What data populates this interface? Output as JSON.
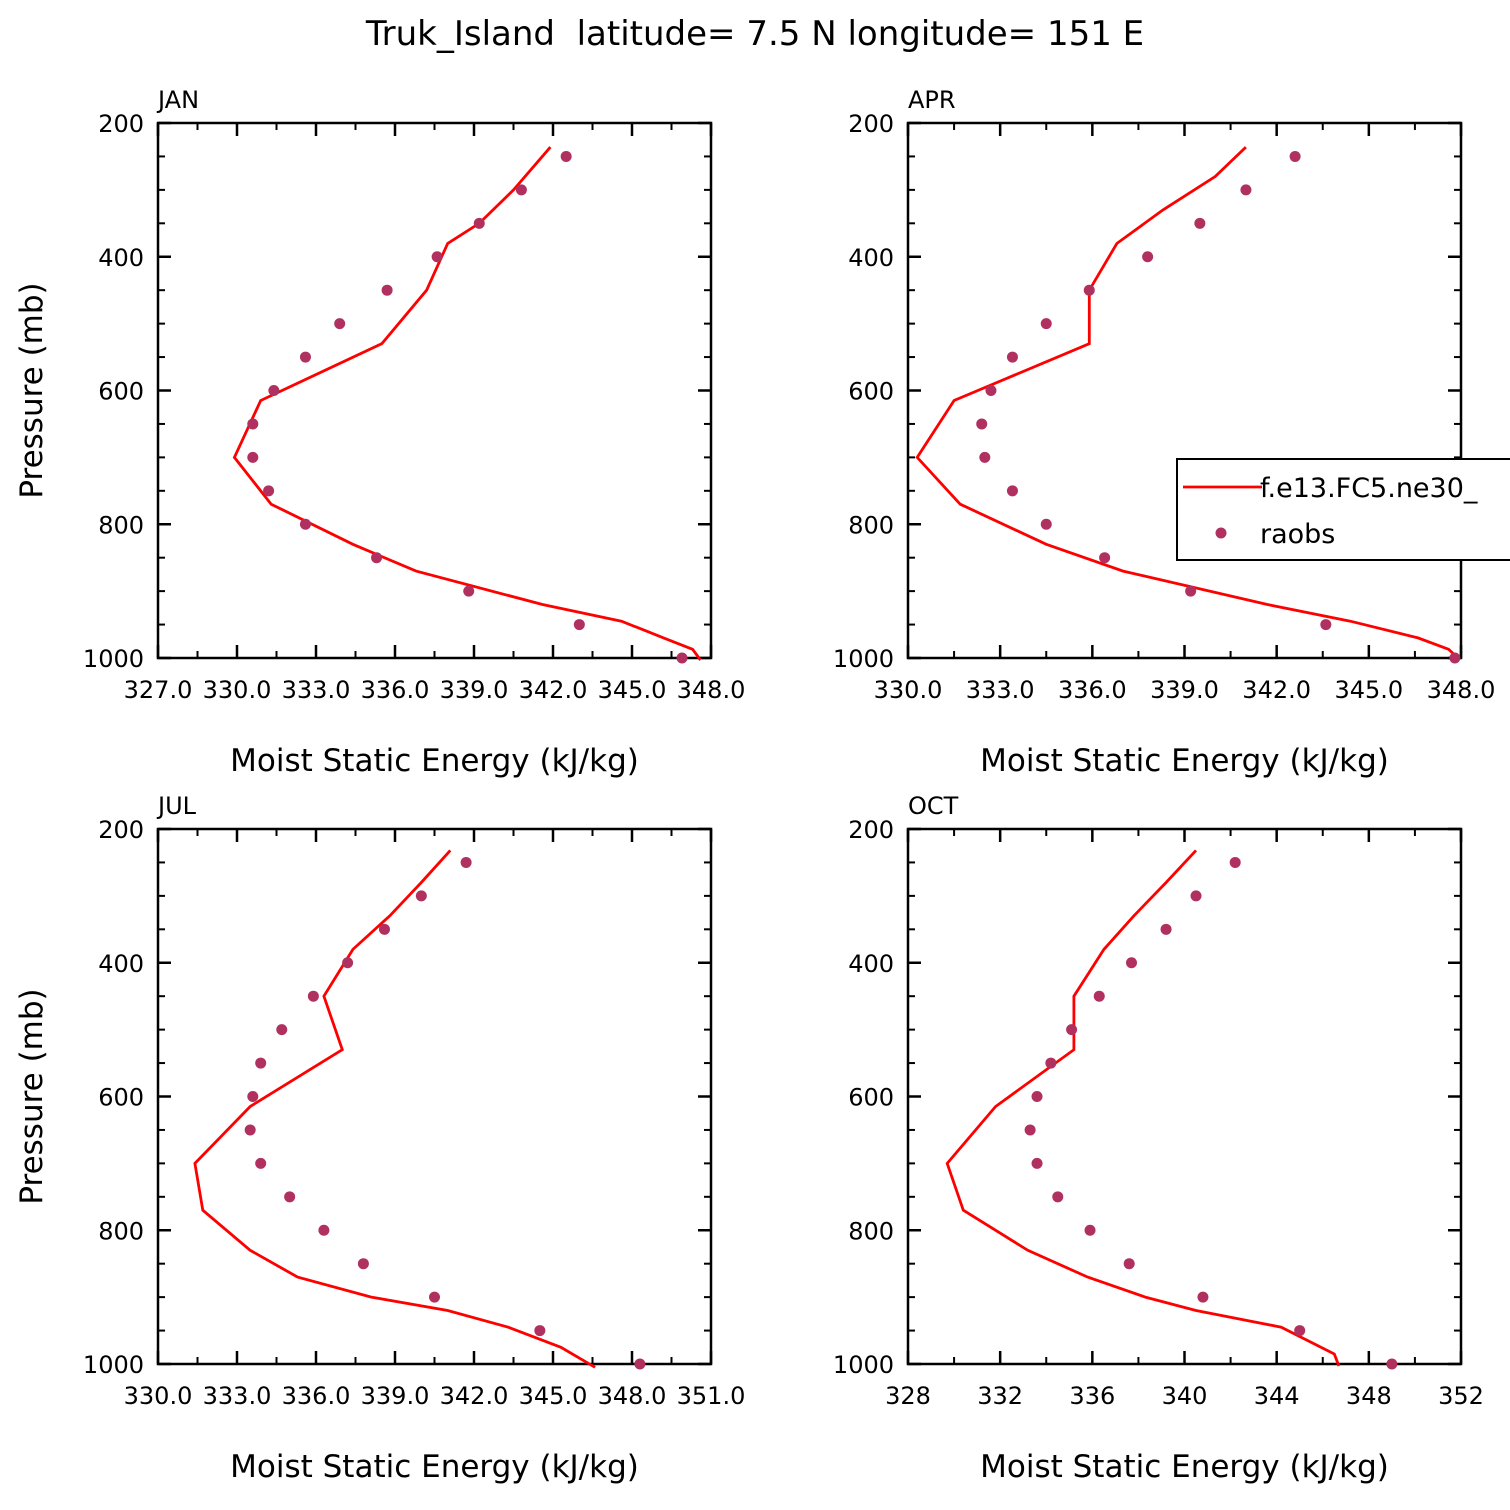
{
  "title": "Truk_Island  latitude= 7.5 N longitude= 151 E",
  "legend": {
    "model_label": "f.e13.FC5.ne30_",
    "obs_label": "raobs"
  },
  "colors": {
    "model": "#ff0000",
    "obs": "#b03060",
    "axis": "#000000"
  },
  "chart_data": [
    {
      "type": "line",
      "panel": "JAN",
      "title": "JAN",
      "xlabel": "Moist Static Energy (kJ/kg)",
      "ylabel": "Pressure (mb)",
      "xlim": [
        327,
        348
      ],
      "ylim": [
        1000,
        200
      ],
      "y_inverted": true,
      "x_ticks": [
        "327.0",
        "330.0",
        "333.0",
        "336.0",
        "339.0",
        "342.0",
        "345.0",
        "348.0"
      ],
      "y_ticks": [
        "200",
        "400",
        "600",
        "800",
        "1000"
      ],
      "series": [
        {
          "kind": "line",
          "pressure": [
            236,
            300,
            350,
            380,
            450,
            530,
            615,
            700,
            770,
            830,
            870,
            920,
            945,
            970,
            987,
            1003
          ],
          "mse": [
            341.9,
            340.5,
            339.2,
            338.0,
            337.2,
            335.5,
            330.9,
            329.9,
            331.3,
            334.4,
            336.8,
            341.6,
            344.6,
            346.2,
            347.3,
            347.6
          ]
        },
        {
          "kind": "scatter",
          "pressure": [
            250,
            300,
            350,
            400,
            450,
            500,
            550,
            600,
            650,
            700,
            750,
            800,
            850,
            900,
            950,
            1000
          ],
          "mse": [
            342.5,
            340.8,
            339.2,
            337.6,
            335.7,
            333.9,
            332.6,
            331.4,
            330.6,
            330.6,
            331.2,
            332.6,
            335.3,
            338.8,
            343.0,
            346.9
          ]
        }
      ]
    },
    {
      "type": "line",
      "panel": "APR",
      "title": "APR",
      "xlabel": "Moist Static Energy (kJ/kg)",
      "ylabel": "",
      "xlim": [
        330,
        348
      ],
      "ylim": [
        1000,
        200
      ],
      "y_inverted": true,
      "x_ticks": [
        "330.0",
        "333.0",
        "336.0",
        "339.0",
        "342.0",
        "345.0",
        "348.0"
      ],
      "y_ticks": [
        "200",
        "400",
        "600",
        "800",
        "1000"
      ],
      "show_legend": true,
      "legend_position": "right",
      "series": [
        {
          "kind": "line",
          "pressure": [
            236,
            280,
            330,
            380,
            450,
            530,
            615,
            700,
            770,
            830,
            870,
            920,
            945,
            970,
            987,
            1000
          ],
          "mse": [
            341.0,
            340.0,
            338.3,
            336.8,
            335.9,
            335.9,
            331.5,
            330.3,
            331.7,
            334.5,
            337.0,
            341.7,
            344.4,
            346.6,
            347.6,
            347.9
          ]
        },
        {
          "kind": "scatter",
          "pressure": [
            250,
            300,
            350,
            400,
            450,
            500,
            550,
            600,
            650,
            700,
            750,
            800,
            850,
            900,
            950,
            1000
          ],
          "mse": [
            342.6,
            341.0,
            339.5,
            337.8,
            335.9,
            334.5,
            333.4,
            332.7,
            332.4,
            332.5,
            333.4,
            334.5,
            336.4,
            339.2,
            343.6,
            347.8
          ]
        }
      ]
    },
    {
      "type": "line",
      "panel": "JUL",
      "title": "JUL",
      "xlabel": "Moist Static Energy (kJ/kg)",
      "ylabel": "Pressure (mb)",
      "xlim": [
        330,
        351
      ],
      "ylim": [
        1000,
        200
      ],
      "y_inverted": true,
      "x_ticks": [
        "330.0",
        "333.0",
        "336.0",
        "339.0",
        "342.0",
        "345.0",
        "348.0",
        "351.0"
      ],
      "y_ticks": [
        "200",
        "400",
        "600",
        "800",
        "1000"
      ],
      "series": [
        {
          "kind": "line",
          "pressure": [
            232,
            280,
            330,
            380,
            450,
            530,
            615,
            700,
            770,
            830,
            870,
            900,
            920,
            945,
            975,
            1005
          ],
          "mse": [
            341.1,
            340.0,
            338.8,
            337.4,
            336.3,
            337.0,
            333.5,
            331.4,
            331.7,
            333.5,
            335.3,
            338.1,
            341.0,
            343.3,
            345.3,
            346.6
          ]
        },
        {
          "kind": "scatter",
          "pressure": [
            250,
            300,
            350,
            400,
            450,
            500,
            550,
            600,
            650,
            700,
            750,
            800,
            850,
            900,
            950,
            1000
          ],
          "mse": [
            341.7,
            340.0,
            338.6,
            337.2,
            335.9,
            334.7,
            333.9,
            333.6,
            333.5,
            333.9,
            335.0,
            336.3,
            337.8,
            340.5,
            344.5,
            348.3
          ]
        }
      ]
    },
    {
      "type": "line",
      "panel": "OCT",
      "title": "OCT",
      "xlabel": "Moist Static Energy (kJ/kg)",
      "ylabel": "",
      "xlim": [
        328,
        352
      ],
      "ylim": [
        1000,
        200
      ],
      "y_inverted": true,
      "x_ticks": [
        "328",
        "332",
        "336",
        "340",
        "344",
        "348",
        "352"
      ],
      "y_ticks": [
        "200",
        "400",
        "600",
        "800",
        "1000"
      ],
      "series": [
        {
          "kind": "line",
          "pressure": [
            232,
            280,
            330,
            380,
            450,
            530,
            615,
            700,
            770,
            830,
            870,
            900,
            920,
            945,
            985,
            1003
          ],
          "mse": [
            340.5,
            339.2,
            337.8,
            336.5,
            335.2,
            335.2,
            331.8,
            329.7,
            330.4,
            333.2,
            335.8,
            338.3,
            340.5,
            344.2,
            346.5,
            346.7
          ]
        },
        {
          "kind": "scatter",
          "pressure": [
            250,
            300,
            350,
            400,
            450,
            500,
            550,
            600,
            650,
            700,
            750,
            800,
            850,
            900,
            950,
            1000
          ],
          "mse": [
            342.2,
            340.5,
            339.2,
            337.7,
            336.3,
            335.1,
            334.2,
            333.6,
            333.3,
            333.6,
            334.5,
            335.9,
            337.6,
            340.8,
            345.0,
            349.0
          ]
        }
      ]
    }
  ]
}
